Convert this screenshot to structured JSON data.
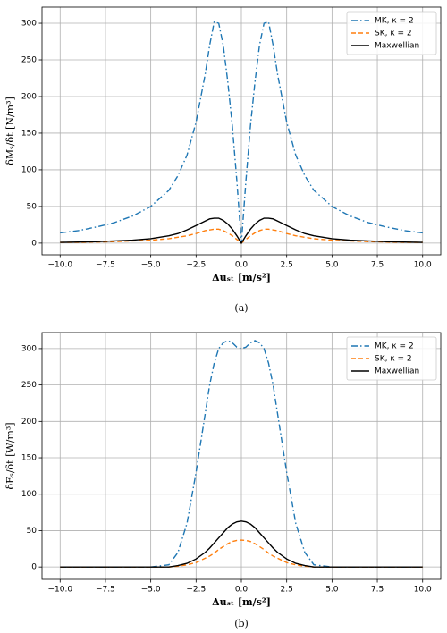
{
  "chart_data": [
    {
      "type": "line",
      "caption": "(a)",
      "xlabel": "Δuₛₜ  [m/s²]",
      "ylabel": "δMₛ/δt  [N/m³]",
      "x": [
        -10,
        -9,
        -8,
        -7,
        -6,
        -5,
        -4,
        -3.5,
        -3,
        -2.5,
        -2,
        -1.75,
        -1.5,
        -1.25,
        -1,
        -0.75,
        -0.5,
        -0.25,
        0,
        0.25,
        0.5,
        0.75,
        1,
        1.25,
        1.5,
        1.75,
        2,
        2.5,
        3,
        3.5,
        4,
        5,
        6,
        7,
        8,
        9,
        10
      ],
      "series": [
        {
          "name": "MK,  κ = 2",
          "color": "#1f77b4",
          "linestyle": "dashdot",
          "values": [
            14,
            17,
            22,
            28,
            37,
            50,
            72,
            92,
            120,
            165,
            230,
            270,
            302,
            300,
            270,
            220,
            160,
            85,
            0,
            85,
            160,
            220,
            270,
            300,
            302,
            270,
            230,
            165,
            120,
            92,
            72,
            50,
            37,
            28,
            22,
            17,
            14
          ]
        },
        {
          "name": "SK,  κ = 2",
          "color": "#ff7f0e",
          "linestyle": "dashed",
          "values": [
            1,
            1,
            1.5,
            2,
            3,
            4,
            6,
            8,
            10,
            13,
            17,
            18,
            19,
            19,
            17,
            14,
            10,
            5,
            0,
            5,
            10,
            14,
            17,
            19,
            19,
            18,
            17,
            13,
            10,
            8,
            6,
            4,
            3,
            2,
            1.5,
            1,
            1
          ]
        },
        {
          "name": "Maxwellian",
          "color": "#000000",
          "linestyle": "solid",
          "values": [
            1,
            1.5,
            2,
            3,
            4,
            6,
            10,
            13,
            18,
            24,
            30,
            33,
            34,
            34,
            31,
            26,
            19,
            10,
            0,
            10,
            19,
            26,
            31,
            34,
            34,
            33,
            30,
            24,
            18,
            13,
            10,
            6,
            4,
            3,
            2,
            1.5,
            1
          ]
        }
      ],
      "xlim": [
        -11,
        11
      ],
      "ylim": [
        -16,
        322
      ],
      "xticks": [
        {
          "value": -10,
          "label": "−10.0"
        },
        {
          "value": -7.5,
          "label": "−7.5"
        },
        {
          "value": -5,
          "label": "−5.0"
        },
        {
          "value": -2.5,
          "label": "−2.5"
        },
        {
          "value": 0,
          "label": "0.0"
        },
        2.5,
        {
          "value": 5,
          "label": "5.0"
        },
        7.5,
        {
          "value": 10,
          "label": "10.0"
        }
      ],
      "yticks": [
        0,
        50,
        100,
        150,
        200,
        250,
        300
      ],
      "grid": true,
      "legend": "upper right"
    },
    {
      "type": "line",
      "caption": "(b)",
      "xlabel": "Δuₛₜ  [m/s²]",
      "ylabel": "δEₛ/δt  [W/m³]",
      "x": [
        -10,
        -9,
        -8,
        -7,
        -6,
        -5,
        -4,
        -3.5,
        -3,
        -2.5,
        -2,
        -1.75,
        -1.5,
        -1.25,
        -1,
        -0.75,
        -0.5,
        -0.25,
        0,
        0.25,
        0.5,
        0.75,
        1,
        1.25,
        1.5,
        1.75,
        2,
        2.5,
        3,
        3.5,
        4,
        5,
        6,
        7,
        8,
        9,
        10
      ],
      "series": [
        {
          "name": "MK,  κ = 2",
          "color": "#1f77b4",
          "linestyle": "dashdot",
          "values": [
            0,
            0,
            0,
            0,
            0,
            0,
            3,
            20,
            60,
            130,
            210,
            250,
            280,
            300,
            308,
            311,
            308,
            302,
            300,
            302,
            308,
            311,
            308,
            300,
            280,
            250,
            210,
            130,
            60,
            20,
            3,
            0,
            0,
            0,
            0,
            0,
            0
          ]
        },
        {
          "name": "SK,  κ = 2",
          "color": "#ff7f0e",
          "linestyle": "dashed",
          "values": [
            0,
            0,
            0,
            0,
            0,
            0,
            0,
            1,
            3,
            6,
            12,
            15,
            19,
            24,
            28,
            32,
            35,
            36.5,
            37,
            36.5,
            35,
            32,
            28,
            24,
            19,
            15,
            12,
            6,
            3,
            1,
            0,
            0,
            0,
            0,
            0,
            0,
            0
          ]
        },
        {
          "name": "Maxwellian",
          "color": "#000000",
          "linestyle": "solid",
          "values": [
            0,
            0,
            0,
            0,
            0,
            0,
            0,
            2,
            5,
            11,
            20,
            26,
            33,
            40,
            47,
            54,
            59,
            62,
            63,
            62,
            59,
            54,
            47,
            40,
            33,
            26,
            20,
            11,
            5,
            2,
            0,
            0,
            0,
            0,
            0,
            0,
            0
          ]
        }
      ],
      "xlim": [
        -11,
        11
      ],
      "ylim": [
        -17,
        322
      ],
      "xticks": [
        {
          "value": -10,
          "label": "−10.0"
        },
        {
          "value": -7.5,
          "label": "−7.5"
        },
        {
          "value": -5,
          "label": "−5.0"
        },
        {
          "value": -2.5,
          "label": "−2.5"
        },
        {
          "value": 0,
          "label": "0.0"
        },
        2.5,
        {
          "value": 5,
          "label": "5.0"
        },
        7.5,
        {
          "value": 10,
          "label": "10.0"
        }
      ],
      "yticks": [
        0,
        50,
        100,
        150,
        200,
        250,
        300
      ],
      "grid": true,
      "legend": "upper right"
    }
  ]
}
